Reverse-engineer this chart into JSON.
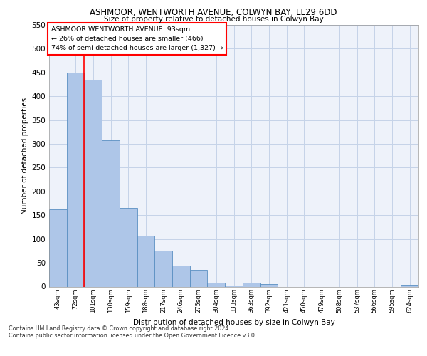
{
  "title1": "ASHMOOR, WENTWORTH AVENUE, COLWYN BAY, LL29 6DD",
  "title2": "Size of property relative to detached houses in Colwyn Bay",
  "xlabel": "Distribution of detached houses by size in Colwyn Bay",
  "ylabel": "Number of detached properties",
  "categories": [
    "43sqm",
    "72sqm",
    "101sqm",
    "130sqm",
    "159sqm",
    "188sqm",
    "217sqm",
    "246sqm",
    "275sqm",
    "304sqm",
    "333sqm",
    "363sqm",
    "392sqm",
    "421sqm",
    "450sqm",
    "479sqm",
    "508sqm",
    "537sqm",
    "566sqm",
    "595sqm",
    "624sqm"
  ],
  "values": [
    163,
    450,
    435,
    307,
    165,
    107,
    75,
    44,
    35,
    8,
    2,
    8,
    5,
    0,
    0,
    0,
    0,
    0,
    0,
    0,
    4
  ],
  "bar_color": "#aec6e8",
  "bar_edge_color": "#5a8fc2",
  "reference_line_x": 1.5,
  "reference_line_label": "ASHMOOR WENTWORTH AVENUE: 93sqm",
  "ref_line1": "← 26% of detached houses are smaller (466)",
  "ref_line2": "74% of semi-detached houses are larger (1,327) →",
  "ylim": [
    0,
    550
  ],
  "yticks": [
    0,
    50,
    100,
    150,
    200,
    250,
    300,
    350,
    400,
    450,
    500,
    550
  ],
  "footer1": "Contains HM Land Registry data © Crown copyright and database right 2024.",
  "footer2": "Contains public sector information licensed under the Open Government Licence v3.0.",
  "bg_color": "#eef2fa",
  "grid_color": "#c5d3e8"
}
